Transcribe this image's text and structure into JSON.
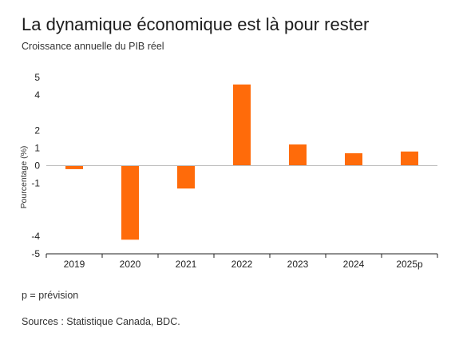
{
  "header": {
    "title": "La dynamique économique est là pour rester",
    "subtitle": "Croissance annuelle du PIB réel"
  },
  "footer": {
    "note": "p = prévision",
    "sources": "Sources : Statistique Canada, BDC."
  },
  "colors": {
    "bar": "#ff6b0a",
    "axis": "#222222",
    "zero_line": "#bfbfbf"
  },
  "chart_data": {
    "type": "bar",
    "ylabel": "Pourcentage (%)",
    "xlabel": "",
    "categories": [
      "2019",
      "2020",
      "2021",
      "2022",
      "2023",
      "2024",
      "2025p"
    ],
    "values": [
      -0.2,
      -4.2,
      -1.3,
      4.6,
      1.2,
      0.7,
      0.8
    ],
    "ylim": [
      -5,
      5
    ],
    "yticks": [
      5,
      4,
      2,
      1,
      0,
      -1,
      -4,
      -5
    ],
    "ytick_labels": [
      "5",
      "4",
      "2",
      "1",
      "0",
      "-1",
      "-4",
      "-5"
    ],
    "grid": false,
    "legend": "none"
  }
}
